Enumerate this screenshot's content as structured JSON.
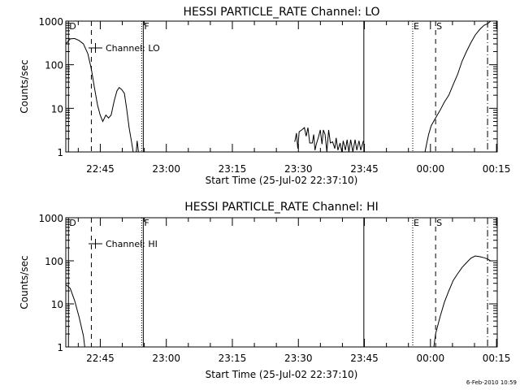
{
  "footer_date": "6-Feb-2010 10:59",
  "chart_data": [
    {
      "type": "line",
      "title": "HESSI PARTICLE_RATE Channel: LO",
      "xlabel": "Start Time (25-Jul-02 22:37:10)",
      "ylabel": "Counts/sec",
      "y_scale": "log",
      "ylim": [
        1,
        1000
      ],
      "xlim_minutes": [
        0,
        98
      ],
      "x_unit": "minutes after 25-Jul-02 22:37:10",
      "x_ticks": [
        {
          "label": "22:45",
          "minutes": 7.83
        },
        {
          "label": "23:00",
          "minutes": 22.83
        },
        {
          "label": "23:15",
          "minutes": 37.83
        },
        {
          "label": "23:30",
          "minutes": 52.83
        },
        {
          "label": "23:45",
          "minutes": 67.83
        },
        {
          "label": "00:00",
          "minutes": 82.83
        },
        {
          "label": "00:15",
          "minutes": 97.83
        }
      ],
      "y_ticks": [
        {
          "label": "1",
          "value": 1
        },
        {
          "label": "10",
          "value": 10
        },
        {
          "label": "100",
          "value": 100
        },
        {
          "label": "1000",
          "value": 1000
        }
      ],
      "grid": false,
      "legend": {
        "label": "Channel: LO",
        "placement": "top-left"
      },
      "markers": [
        {
          "label": "D",
          "minutes": 0.6,
          "style": "solid"
        },
        {
          "label": "",
          "minutes": 5.8,
          "style": "dashed"
        },
        {
          "label": "F",
          "minutes": 17.6,
          "style": "dotted-solid"
        },
        {
          "label": "",
          "minutes": 67.7,
          "style": "solid"
        },
        {
          "label": "E",
          "minutes": 78.8,
          "style": "dotted"
        },
        {
          "label": "S",
          "minutes": 84.0,
          "style": "dashed"
        },
        {
          "label": "",
          "minutes": 95.8,
          "style": "dashdot"
        }
      ],
      "series": [
        {
          "segments": [
            [
              [
                0,
                300
              ],
              [
                1,
                390
              ],
              [
                2,
                400
              ],
              [
                3,
                360
              ],
              [
                4,
                300
              ],
              [
                5,
                180
              ],
              [
                5.8,
                80
              ],
              [
                6.5,
                30
              ],
              [
                7.2,
                12
              ],
              [
                7.8,
                7
              ],
              [
                8.4,
                5
              ],
              [
                9.1,
                7
              ],
              [
                9.7,
                6
              ],
              [
                10.3,
                7
              ],
              [
                11,
                15
              ],
              [
                11.6,
                25
              ],
              [
                12.1,
                30
              ],
              [
                12.7,
                27
              ],
              [
                13.3,
                22
              ],
              [
                13.8,
                10
              ],
              [
                14.4,
                3.5
              ],
              [
                14.9,
                1.8
              ],
              [
                15.3,
                1
              ]
            ],
            [
              [
                16,
                1
              ],
              [
                16.2,
                1.8
              ],
              [
                16.5,
                1
              ]
            ],
            [
              [
                52,
                1.7
              ],
              [
                52.4,
                2.7
              ],
              [
                52.7,
                1.2
              ],
              [
                53,
                2.9
              ],
              [
                53.6,
                3.2
              ],
              [
                54.2,
                3.6
              ],
              [
                54.6,
                2.3
              ],
              [
                55,
                3.6
              ],
              [
                55.4,
                1.6
              ],
              [
                56,
                1.6
              ],
              [
                56.3,
                2.5
              ],
              [
                56.6,
                1.1
              ],
              [
                56.9,
                1.5
              ],
              [
                57.4,
                2.2
              ],
              [
                57.8,
                3.2
              ],
              [
                58.2,
                1.5
              ],
              [
                58.5,
                3.2
              ],
              [
                58.9,
                2.5
              ],
              [
                59.3,
                1
              ],
              [
                59.7,
                3.2
              ],
              [
                60.1,
                1.6
              ],
              [
                60.6,
                1.7
              ],
              [
                61.1,
                1.2
              ],
              [
                61.4,
                2.1
              ],
              [
                61.8,
                1.1
              ],
              [
                62.3,
                1.6
              ],
              [
                62.7,
                1.0
              ],
              [
                63,
                1.8
              ],
              [
                63.5,
                1.1
              ],
              [
                63.9,
                1.9
              ],
              [
                64.3,
                1
              ],
              [
                64.7,
                1.9
              ],
              [
                65.2,
                1.0
              ],
              [
                65.7,
                1.9
              ],
              [
                66.1,
                1.1
              ],
              [
                66.6,
                1.8
              ],
              [
                67,
                1.1
              ],
              [
                67.6,
                1.8
              ]
            ],
            [
              [
                81.6,
                1
              ],
              [
                82,
                1.6
              ],
              [
                82.4,
                2.5
              ],
              [
                83,
                4
              ],
              [
                84,
                6
              ],
              [
                85,
                9
              ],
              [
                86,
                14
              ],
              [
                87,
                20
              ],
              [
                88,
                35
              ],
              [
                89,
                60
              ],
              [
                90,
                120
              ],
              [
                91,
                200
              ],
              [
                92,
                320
              ],
              [
                93,
                480
              ],
              [
                94,
                640
              ],
              [
                95,
                800
              ],
              [
                95.8,
                870
              ],
              [
                96.5,
                1000
              ]
            ]
          ]
        }
      ]
    },
    {
      "type": "line",
      "title": "HESSI PARTICLE_RATE Channel: HI",
      "xlabel": "Start Time (25-Jul-02 22:37:10)",
      "ylabel": "Counts/sec",
      "y_scale": "log",
      "ylim": [
        1,
        1000
      ],
      "xlim_minutes": [
        0,
        98
      ],
      "x_unit": "minutes after 25-Jul-02 22:37:10",
      "x_ticks": [
        {
          "label": "22:45",
          "minutes": 7.83
        },
        {
          "label": "23:00",
          "minutes": 22.83
        },
        {
          "label": "23:15",
          "minutes": 37.83
        },
        {
          "label": "23:30",
          "minutes": 52.83
        },
        {
          "label": "23:45",
          "minutes": 67.83
        },
        {
          "label": "00:00",
          "minutes": 82.83
        },
        {
          "label": "00:15",
          "minutes": 97.83
        }
      ],
      "y_ticks": [
        {
          "label": "1",
          "value": 1
        },
        {
          "label": "10",
          "value": 10
        },
        {
          "label": "100",
          "value": 100
        },
        {
          "label": "1000",
          "value": 1000
        }
      ],
      "grid": false,
      "legend": {
        "label": "Channel: HI",
        "placement": "top-left"
      },
      "markers": [
        {
          "label": "D",
          "minutes": 0.6,
          "style": "solid"
        },
        {
          "label": "",
          "minutes": 5.8,
          "style": "dashed"
        },
        {
          "label": "F",
          "minutes": 17.6,
          "style": "dotted-solid"
        },
        {
          "label": "",
          "minutes": 67.7,
          "style": "solid"
        },
        {
          "label": "E",
          "minutes": 78.8,
          "style": "dotted"
        },
        {
          "label": "S",
          "minutes": 84.0,
          "style": "dashed"
        },
        {
          "label": "",
          "minutes": 95.8,
          "style": "dashdot"
        }
      ],
      "series": [
        {
          "segments": [
            [
              [
                0,
                28
              ],
              [
                1,
                23
              ],
              [
                2,
                12
              ],
              [
                3,
                5
              ],
              [
                4,
                1.8
              ],
              [
                4.3,
                1
              ]
            ],
            [
              [
                83.6,
                1
              ],
              [
                84,
                2
              ],
              [
                85,
                5
              ],
              [
                86,
                11
              ],
              [
                87,
                20
              ],
              [
                88,
                35
              ],
              [
                89,
                50
              ],
              [
                90,
                70
              ],
              [
                91,
                90
              ],
              [
                92,
                115
              ],
              [
                93,
                130
              ],
              [
                94,
                125
              ],
              [
                95,
                118
              ],
              [
                95.8,
                110
              ],
              [
                96.5,
                100
              ]
            ]
          ]
        }
      ]
    }
  ]
}
